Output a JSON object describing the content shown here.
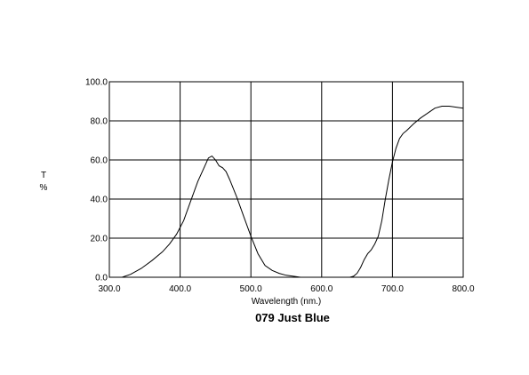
{
  "chart_data": {
    "type": "line",
    "title": "079 Just Blue",
    "xlabel": "Wavelength (nm.)",
    "ylabel": "T\n%",
    "ylabel_lines": [
      "T",
      "%"
    ],
    "xlim": [
      300,
      800
    ],
    "ylim": [
      0,
      100
    ],
    "x_ticks": [
      300,
      400,
      500,
      600,
      700,
      800
    ],
    "x_tick_labels": [
      "300.0",
      "400.0",
      "500.0",
      "600.0",
      "700.0",
      "800.0"
    ],
    "y_ticks": [
      0,
      20,
      40,
      60,
      80,
      100
    ],
    "y_tick_labels": [
      "0.0",
      "20.0",
      "40.0",
      "60.0",
      "80.0",
      "100.0"
    ],
    "grid": true,
    "series": [
      {
        "color": "#000000",
        "x": [
          318,
          330,
          345,
          360,
          375,
          385,
          395,
          405,
          415,
          425,
          435,
          440,
          445,
          450,
          455,
          460,
          465,
          470,
          480,
          490,
          500,
          510,
          520,
          530,
          540,
          550,
          560,
          570,
          580,
          590,
          600,
          610,
          620,
          630,
          640,
          645,
          650,
          655,
          660,
          665,
          670,
          675,
          680,
          685,
          690,
          695,
          700,
          705,
          710,
          715,
          720,
          730,
          740,
          750,
          760,
          770,
          780,
          790,
          800
        ],
        "y": [
          0,
          1.5,
          4.5,
          8.5,
          13,
          17,
          22,
          29,
          39,
          49,
          57,
          61,
          62,
          60,
          57,
          56,
          54,
          50,
          41,
          31,
          21,
          12,
          6,
          3.5,
          2,
          1,
          0.5,
          0,
          0,
          0,
          0,
          0,
          0,
          0,
          0,
          0.5,
          2,
          5,
          9,
          12,
          14,
          17,
          21,
          29,
          40,
          50,
          59,
          66,
          71,
          73.5,
          75,
          78.5,
          81.5,
          84,
          86.5,
          87.5,
          87.5,
          87,
          86.5
        ]
      }
    ]
  }
}
